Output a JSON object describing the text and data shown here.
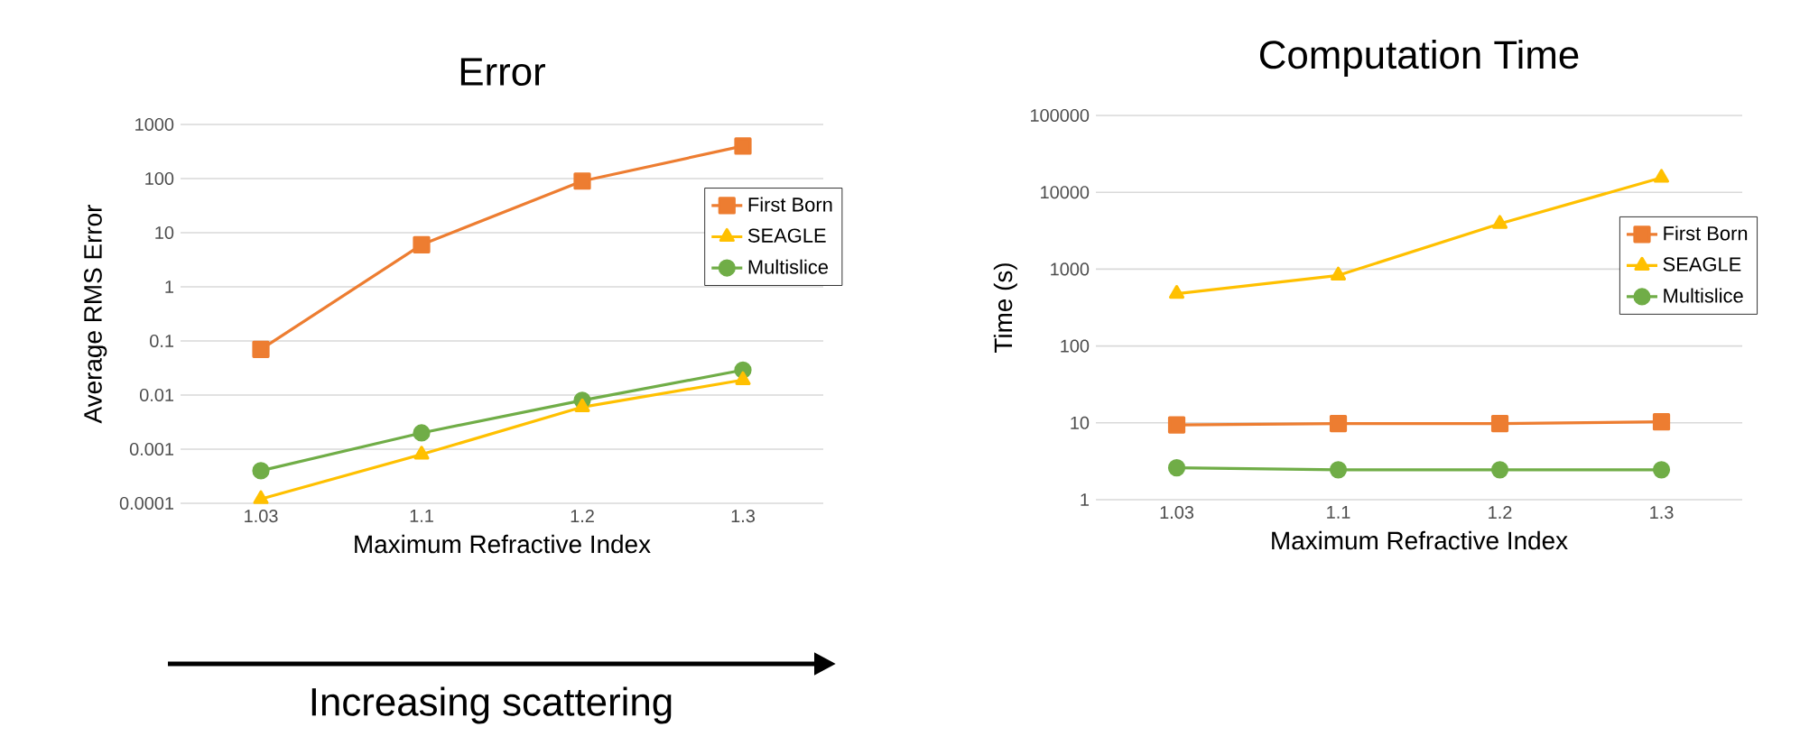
{
  "chart_data": [
    {
      "type": "line",
      "title": "Error",
      "xlabel": "Maximum Refractive Index",
      "ylabel": "Average RMS Error",
      "categories": [
        "1.03",
        "1.1",
        "1.2",
        "1.3"
      ],
      "log": "y",
      "ylim": [
        0.0001,
        1000
      ],
      "yticks": [
        0.0001,
        0.001,
        0.01,
        0.1,
        1,
        10,
        100,
        1000
      ],
      "grid": "y",
      "legend": "right",
      "annotations": [
        "Increasing scattering"
      ],
      "series": [
        {
          "name": "First Born",
          "color": "#ed7d31",
          "marker": "square",
          "values": [
            0.07,
            6,
            90,
            400
          ]
        },
        {
          "name": "SEAGLE",
          "color": "#ffc000",
          "marker": "triangle",
          "values": [
            0.00012,
            0.0008,
            0.006,
            0.019
          ]
        },
        {
          "name": "Multislice",
          "color": "#70ad47",
          "marker": "circle",
          "values": [
            0.0004,
            0.002,
            0.008,
            0.029
          ]
        }
      ]
    },
    {
      "type": "line",
      "title": "Computation Time",
      "xlabel": "Maximum Refractive Index",
      "ylabel": "Time (s)",
      "categories": [
        "1.03",
        "1.1",
        "1.2",
        "1.3"
      ],
      "log": "y",
      "ylim": [
        1,
        100000
      ],
      "yticks": [
        1,
        10,
        100,
        1000,
        10000,
        100000
      ],
      "grid": "y",
      "legend": "right",
      "series": [
        {
          "name": "First Born",
          "color": "#ed7d31",
          "marker": "square",
          "values": [
            9.4,
            9.8,
            9.8,
            10.3
          ]
        },
        {
          "name": "SEAGLE",
          "color": "#ffc000",
          "marker": "triangle",
          "values": [
            480,
            830,
            3900,
            15500
          ]
        },
        {
          "name": "Multislice",
          "color": "#70ad47",
          "marker": "circle",
          "values": [
            2.6,
            2.45,
            2.45,
            2.45
          ]
        }
      ]
    }
  ]
}
